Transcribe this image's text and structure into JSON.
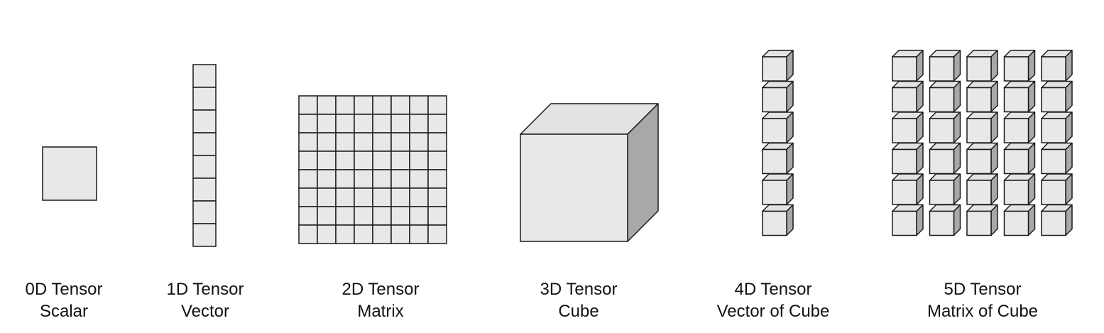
{
  "colors": {
    "face": "#e8e8e8",
    "top": "#e3e3e3",
    "side": "#a8a8a8",
    "stroke": "#1a1a1a"
  },
  "tensors": [
    {
      "rank_label": "0D Tensor",
      "name": "Scalar",
      "grid": [
        1,
        1
      ]
    },
    {
      "rank_label": "1D Tensor",
      "name": "Vector",
      "grid": [
        8,
        1
      ]
    },
    {
      "rank_label": "2D Tensor",
      "name": "Matrix",
      "grid": [
        8,
        8
      ]
    },
    {
      "rank_label": "3D Tensor",
      "name": "Cube",
      "grid": [
        1,
        1
      ]
    },
    {
      "rank_label": "4D Tensor",
      "name": "Vector of Cube",
      "grid": [
        6,
        1
      ]
    },
    {
      "rank_label": "5D Tensor",
      "name": "Matrix of Cube",
      "grid": [
        6,
        5
      ]
    }
  ]
}
